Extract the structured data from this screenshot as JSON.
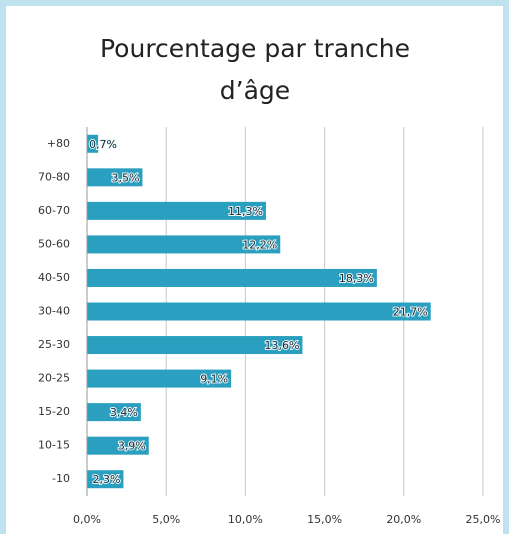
{
  "chart_data": {
    "type": "bar",
    "orientation": "horizontal",
    "title": "Pourcentage par tranche d’âge",
    "categories": [
      "+80",
      "70-80",
      "60-70",
      "50-60",
      "40-50",
      "30-40",
      "25-30",
      "20-25",
      "15-20",
      "10-15",
      "-10"
    ],
    "values": [
      0.7,
      3.5,
      11.3,
      12.2,
      18.3,
      21.7,
      13.6,
      9.1,
      3.4,
      3.9,
      2.3
    ],
    "value_labels": [
      "0,7%",
      "3,5%",
      "11,3%",
      "12,2%",
      "18,3%",
      "21,7%",
      "13,6%",
      "9,1%",
      "3,4%",
      "3,9%",
      "2,3%"
    ],
    "color": "#2b9fc0",
    "xlim": [
      0,
      25
    ],
    "xticks": [
      {
        "value": 0,
        "label": "0,0%"
      },
      {
        "value": 5,
        "label": "5,0%"
      },
      {
        "value": 10,
        "label": "10,0%"
      },
      {
        "value": 15,
        "label": "15,0%"
      },
      {
        "value": 20,
        "label": "20,0%"
      },
      {
        "value": 25,
        "label": "25,0%"
      }
    ],
    "grid": true
  }
}
